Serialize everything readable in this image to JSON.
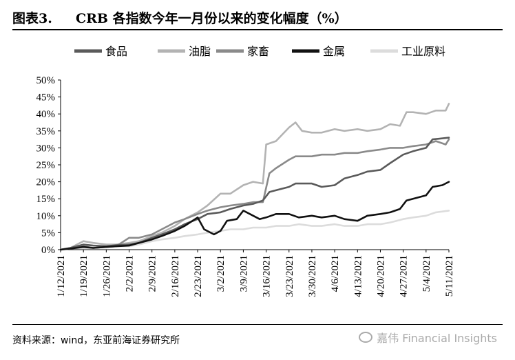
{
  "figure": {
    "label": "图表3.",
    "title": "CRB 各指数今年一月份以来的变化幅度（%）"
  },
  "source": "资料来源：wind，东亚前海证券研究所",
  "watermark": "嘉伟 Financial Insights",
  "chart_data": {
    "type": "line",
    "ylim": [
      0,
      50
    ],
    "y_ticks": [
      "0%",
      "5%",
      "10%",
      "15%",
      "20%",
      "25%",
      "30%",
      "35%",
      "40%",
      "45%",
      "50%"
    ],
    "x_ticks": [
      "1/12/2021",
      "1/19/2021",
      "1/26/2021",
      "2/2/2021",
      "2/9/2021",
      "2/16/2021",
      "2/23/2021",
      "3/2/2021",
      "3/9/2021",
      "3/16/2021",
      "3/23/2021",
      "3/30/2021",
      "4/6/2021",
      "4/13/2021",
      "4/20/2021",
      "4/27/2021",
      "5/4/2021",
      "5/11/2021"
    ],
    "xlabel": "",
    "ylabel": "",
    "grid": false,
    "legend_position": "top",
    "series": [
      {
        "name": "食品",
        "color": "#5a5a5a",
        "points": [
          [
            "1/12/2021",
            0
          ],
          [
            "1/15/2021",
            0.5
          ],
          [
            "1/19/2021",
            1.5
          ],
          [
            "1/22/2021",
            1.2
          ],
          [
            "1/26/2021",
            1.0
          ],
          [
            "1/29/2021",
            1.3
          ],
          [
            "2/2/2021",
            1.5
          ],
          [
            "2/5/2021",
            2.0
          ],
          [
            "2/9/2021",
            3.5
          ],
          [
            "2/12/2021",
            4.5
          ],
          [
            "2/16/2021",
            6.0
          ],
          [
            "2/19/2021",
            7.5
          ],
          [
            "2/23/2021",
            9.0
          ],
          [
            "2/26/2021",
            10.5
          ],
          [
            "3/2/2021",
            11.0
          ],
          [
            "3/5/2021",
            12.0
          ],
          [
            "3/9/2021",
            13.0
          ],
          [
            "3/12/2021",
            13.5
          ],
          [
            "3/15/2021",
            14.5
          ],
          [
            "3/17/2021",
            17.0
          ],
          [
            "3/19/2021",
            17.5
          ],
          [
            "3/23/2021",
            18.5
          ],
          [
            "3/25/2021",
            19.5
          ],
          [
            "3/30/2021",
            19.5
          ],
          [
            "4/2/2021",
            18.5
          ],
          [
            "4/6/2021",
            19.0
          ],
          [
            "4/9/2021",
            21.0
          ],
          [
            "4/13/2021",
            22.0
          ],
          [
            "4/16/2021",
            23.0
          ],
          [
            "4/20/2021",
            23.5
          ],
          [
            "4/23/2021",
            25.5
          ],
          [
            "4/27/2021",
            28.0
          ],
          [
            "4/30/2021",
            29.0
          ],
          [
            "5/4/2021",
            30.0
          ],
          [
            "5/6/2021",
            32.5
          ],
          [
            "5/11/2021",
            33.0
          ]
        ]
      },
      {
        "name": "油脂",
        "color": "#b3b3b3",
        "points": [
          [
            "1/12/2021",
            0
          ],
          [
            "1/15/2021",
            0.5
          ],
          [
            "1/19/2021",
            2.5
          ],
          [
            "1/22/2021",
            2.0
          ],
          [
            "1/26/2021",
            1.5
          ],
          [
            "1/29/2021",
            1.5
          ],
          [
            "2/2/2021",
            2.0
          ],
          [
            "2/5/2021",
            2.5
          ],
          [
            "2/9/2021",
            4.0
          ],
          [
            "2/12/2021",
            5.0
          ],
          [
            "2/16/2021",
            7.0
          ],
          [
            "2/19/2021",
            9.0
          ],
          [
            "2/23/2021",
            11.0
          ],
          [
            "2/26/2021",
            13.0
          ],
          [
            "3/2/2021",
            16.5
          ],
          [
            "3/5/2021",
            16.5
          ],
          [
            "3/9/2021",
            19.0
          ],
          [
            "3/12/2021",
            20.0
          ],
          [
            "3/15/2021",
            19.5
          ],
          [
            "3/16/2021",
            31.0
          ],
          [
            "3/19/2021",
            32.0
          ],
          [
            "3/23/2021",
            36.0
          ],
          [
            "3/25/2021",
            37.5
          ],
          [
            "3/27/2021",
            35.0
          ],
          [
            "3/30/2021",
            34.5
          ],
          [
            "4/2/2021",
            34.5
          ],
          [
            "4/6/2021",
            35.5
          ],
          [
            "4/9/2021",
            35.0
          ],
          [
            "4/13/2021",
            35.5
          ],
          [
            "4/16/2021",
            35.0
          ],
          [
            "4/20/2021",
            35.5
          ],
          [
            "4/23/2021",
            37.0
          ],
          [
            "4/26/2021",
            36.5
          ],
          [
            "4/28/2021",
            40.5
          ],
          [
            "4/30/2021",
            40.5
          ],
          [
            "5/4/2021",
            40.0
          ],
          [
            "5/7/2021",
            41.0
          ],
          [
            "5/10/2021",
            41.0
          ],
          [
            "5/11/2021",
            43.0
          ]
        ]
      },
      {
        "name": "家畜",
        "color": "#8a8a8a",
        "points": [
          [
            "1/12/2021",
            0
          ],
          [
            "1/15/2021",
            0.5
          ],
          [
            "1/19/2021",
            1.0
          ],
          [
            "1/22/2021",
            0.5
          ],
          [
            "1/26/2021",
            0.8
          ],
          [
            "1/29/2021",
            1.0
          ],
          [
            "2/2/2021",
            3.5
          ],
          [
            "2/5/2021",
            3.5
          ],
          [
            "2/9/2021",
            4.5
          ],
          [
            "2/12/2021",
            6.0
          ],
          [
            "2/16/2021",
            8.0
          ],
          [
            "2/19/2021",
            9.0
          ],
          [
            "2/23/2021",
            10.5
          ],
          [
            "2/26/2021",
            11.5
          ],
          [
            "3/2/2021",
            12.5
          ],
          [
            "3/5/2021",
            13.0
          ],
          [
            "3/9/2021",
            13.5
          ],
          [
            "3/12/2021",
            14.0
          ],
          [
            "3/15/2021",
            14.0
          ],
          [
            "3/17/2021",
            22.5
          ],
          [
            "3/19/2021",
            24.0
          ],
          [
            "3/23/2021",
            26.5
          ],
          [
            "3/25/2021",
            27.5
          ],
          [
            "3/30/2021",
            27.5
          ],
          [
            "4/2/2021",
            28.0
          ],
          [
            "4/6/2021",
            28.0
          ],
          [
            "4/9/2021",
            28.5
          ],
          [
            "4/13/2021",
            28.5
          ],
          [
            "4/16/2021",
            29.0
          ],
          [
            "4/20/2021",
            29.5
          ],
          [
            "4/23/2021",
            30.0
          ],
          [
            "4/27/2021",
            30.0
          ],
          [
            "4/30/2021",
            30.5
          ],
          [
            "5/4/2021",
            31.0
          ],
          [
            "5/7/2021",
            32.0
          ],
          [
            "5/10/2021",
            31.0
          ],
          [
            "5/11/2021",
            32.5
          ]
        ]
      },
      {
        "name": "金属",
        "color": "#111111",
        "points": [
          [
            "1/12/2021",
            0
          ],
          [
            "1/15/2021",
            0.3
          ],
          [
            "1/19/2021",
            0.8
          ],
          [
            "1/22/2021",
            0.5
          ],
          [
            "1/26/2021",
            0.8
          ],
          [
            "1/29/2021",
            1.0
          ],
          [
            "2/2/2021",
            1.2
          ],
          [
            "2/5/2021",
            2.0
          ],
          [
            "2/9/2021",
            3.0
          ],
          [
            "2/12/2021",
            4.0
          ],
          [
            "2/16/2021",
            5.5
          ],
          [
            "2/19/2021",
            7.0
          ],
          [
            "2/23/2021",
            9.5
          ],
          [
            "2/25/2021",
            6.0
          ],
          [
            "2/28/2021",
            4.5
          ],
          [
            "3/2/2021",
            5.5
          ],
          [
            "3/4/2021",
            8.5
          ],
          [
            "3/7/2021",
            9.0
          ],
          [
            "3/9/2021",
            11.5
          ],
          [
            "3/11/2021",
            10.5
          ],
          [
            "3/14/2021",
            9.0
          ],
          [
            "3/16/2021",
            9.5
          ],
          [
            "3/19/2021",
            10.5
          ],
          [
            "3/23/2021",
            10.5
          ],
          [
            "3/26/2021",
            9.5
          ],
          [
            "3/30/2021",
            10.0
          ],
          [
            "4/2/2021",
            9.5
          ],
          [
            "4/6/2021",
            10.0
          ],
          [
            "4/9/2021",
            9.0
          ],
          [
            "4/13/2021",
            8.5
          ],
          [
            "4/16/2021",
            10.0
          ],
          [
            "4/20/2021",
            10.5
          ],
          [
            "4/23/2021",
            11.0
          ],
          [
            "4/26/2021",
            12.0
          ],
          [
            "4/28/2021",
            14.5
          ],
          [
            "4/30/2021",
            15.0
          ],
          [
            "5/4/2021",
            16.0
          ],
          [
            "5/6/2021",
            18.5
          ],
          [
            "5/9/2021",
            19.0
          ],
          [
            "5/11/2021",
            20.0
          ]
        ]
      },
      {
        "name": "工业原料",
        "color": "#dcdcdc",
        "points": [
          [
            "1/12/2021",
            0
          ],
          [
            "1/15/2021",
            0.3
          ],
          [
            "1/19/2021",
            0.5
          ],
          [
            "1/22/2021",
            0.5
          ],
          [
            "1/26/2021",
            0.8
          ],
          [
            "1/29/2021",
            1.0
          ],
          [
            "2/2/2021",
            1.0
          ],
          [
            "2/5/2021",
            1.5
          ],
          [
            "2/9/2021",
            2.5
          ],
          [
            "2/12/2021",
            3.0
          ],
          [
            "2/16/2021",
            3.5
          ],
          [
            "2/19/2021",
            4.0
          ],
          [
            "2/23/2021",
            4.5
          ],
          [
            "2/26/2021",
            5.0
          ],
          [
            "3/2/2021",
            5.5
          ],
          [
            "3/5/2021",
            6.0
          ],
          [
            "3/9/2021",
            6.0
          ],
          [
            "3/12/2021",
            6.5
          ],
          [
            "3/16/2021",
            6.5
          ],
          [
            "3/19/2021",
            7.0
          ],
          [
            "3/23/2021",
            7.0
          ],
          [
            "3/26/2021",
            7.5
          ],
          [
            "3/30/2021",
            7.0
          ],
          [
            "4/2/2021",
            7.0
          ],
          [
            "4/6/2021",
            7.5
          ],
          [
            "4/9/2021",
            7.0
          ],
          [
            "4/13/2021",
            7.0
          ],
          [
            "4/16/2021",
            7.5
          ],
          [
            "4/20/2021",
            7.5
          ],
          [
            "4/23/2021",
            8.0
          ],
          [
            "4/27/2021",
            9.0
          ],
          [
            "4/30/2021",
            9.5
          ],
          [
            "5/4/2021",
            10.0
          ],
          [
            "5/7/2021",
            11.0
          ],
          [
            "5/11/2021",
            11.5
          ]
        ]
      }
    ]
  }
}
